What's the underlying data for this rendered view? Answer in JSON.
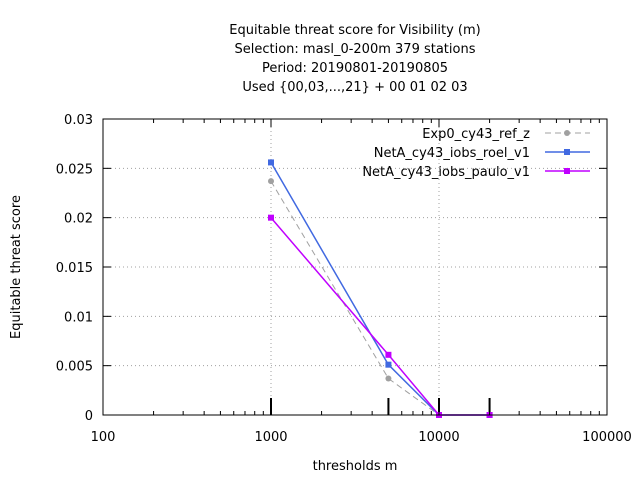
{
  "chart_data": {
    "type": "line",
    "title_lines": [
      "Equitable threat score  for Visibility (m)",
      "Selection: masl_0-200m    379 stations",
      "Period: 20190801-20190805",
      "Used {00,03,...,21} + 00 01 02 03"
    ],
    "xlabel": "thresholds m",
    "ylabel": "Equitable threat score",
    "x_scale": "log",
    "xlim": [
      100,
      100000
    ],
    "ylim": [
      0,
      0.03
    ],
    "x_ticks": [
      100,
      1000,
      10000,
      100000
    ],
    "x_tick_labels": [
      "100",
      "1000",
      "10000",
      "100000"
    ],
    "y_ticks": [
      0,
      0.005,
      0.01,
      0.015,
      0.02,
      0.025,
      0.03
    ],
    "y_tick_labels": [
      "0",
      "0.005",
      "0.01",
      "0.015",
      "0.02",
      "0.025",
      "0.03"
    ],
    "grid": true,
    "legend_position": "top-right",
    "count_markers_x": [
      1000,
      5000,
      10000,
      20000
    ],
    "series": [
      {
        "name": "Exp0_cy43_ref_z",
        "color": "#a0a0a0",
        "dash": true,
        "marker": "circle",
        "x": [
          1000,
          5000,
          10000,
          20000
        ],
        "y": [
          0.0237,
          0.0037,
          0.0,
          0.0
        ]
      },
      {
        "name": "NetA_cy43_iobs_roel_v1",
        "color": "#4169e1",
        "dash": false,
        "marker": "square",
        "x": [
          1000,
          5000,
          10000,
          20000
        ],
        "y": [
          0.0256,
          0.0051,
          0.0,
          0.0
        ]
      },
      {
        "name": "NetA_cy43_iobs_paulo_v1",
        "color": "#c000ff",
        "dash": false,
        "marker": "square",
        "x": [
          1000,
          5000,
          10000,
          20000
        ],
        "y": [
          0.02,
          0.0061,
          0.0,
          0.0
        ]
      }
    ]
  }
}
